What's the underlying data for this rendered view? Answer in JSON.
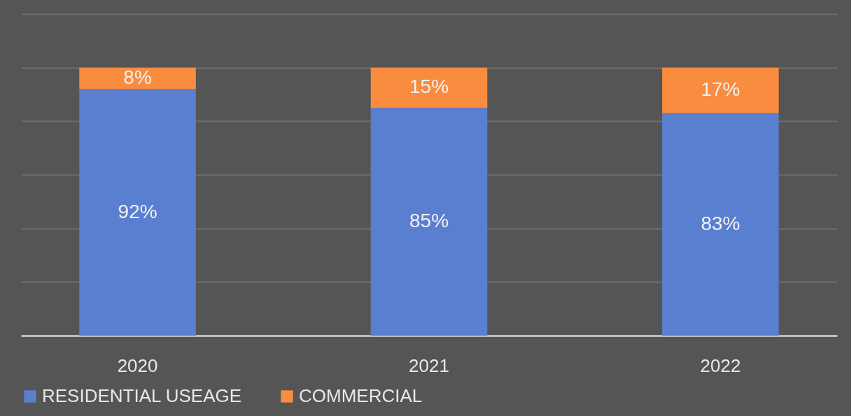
{
  "chart_data": {
    "type": "bar",
    "stacked": true,
    "categories": [
      "2020",
      "2021",
      "2022"
    ],
    "series": [
      {
        "name": "RESIDENTIAL USEAGE",
        "color": "#5b7fd0",
        "values": [
          92,
          85,
          83
        ],
        "value_labels": [
          "92%",
          "85%",
          "83%"
        ]
      },
      {
        "name": "COMMERCIAL",
        "color": "#f98c3f",
        "values": [
          8,
          15,
          17
        ],
        "value_labels": [
          "8%",
          "15%",
          "17%"
        ]
      }
    ],
    "ylim": [
      0,
      120
    ],
    "yticks": [
      {
        "value": 0,
        "label": null
      },
      {
        "value": 20,
        "label": null
      },
      {
        "value": 40,
        "label": null
      },
      {
        "value": 60,
        "label": null
      },
      {
        "value": 80,
        "label": null
      },
      {
        "value": 100,
        "label": null
      },
      {
        "value": 120,
        "label": null
      }
    ],
    "grid": "y",
    "legend": "bottom",
    "tick_labels": "x"
  }
}
